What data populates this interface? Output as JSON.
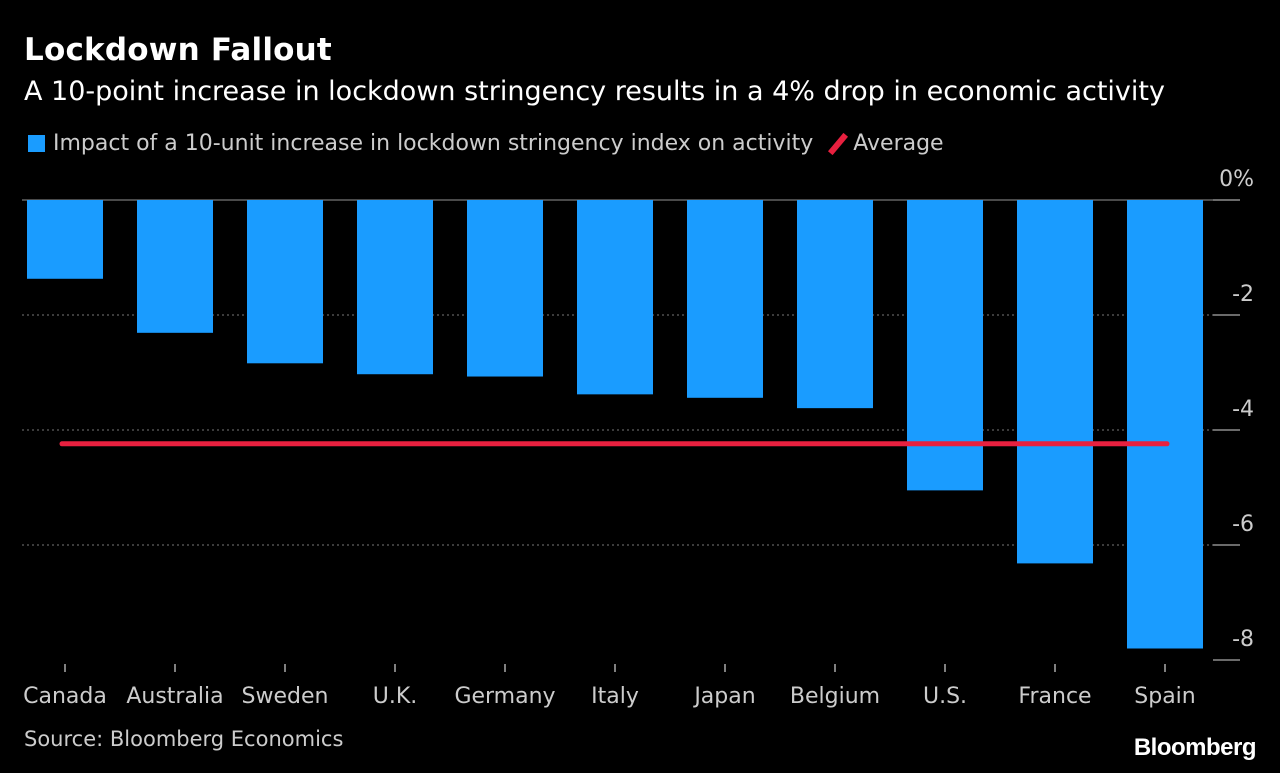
{
  "title": "Lockdown Fallout",
  "subtitle": "A 10-point increase in lockdown stringency results in a 4% drop in economic activity",
  "legend": {
    "series_label": "Impact of a 10-unit increase in lockdown stringency index on activity",
    "average_label": "Average"
  },
  "colors": {
    "bar": "#1a9cff",
    "average": "#e8203f",
    "background": "#000000",
    "grid": "#777777",
    "text": "#cccccc"
  },
  "source": "Source: Bloomberg Economics",
  "brand": "Bloomberg",
  "chart_data": {
    "type": "bar",
    "categories": [
      "Canada",
      "Australia",
      "Sweden",
      "U.K.",
      "Germany",
      "Italy",
      "Japan",
      "Belgium",
      "U.S.",
      "France",
      "Spain"
    ],
    "series": [
      {
        "name": "Impact of a 10-unit increase in lockdown stringency index on activity",
        "values": [
          -1.37,
          -2.31,
          -2.84,
          -3.03,
          -3.07,
          -3.38,
          -3.44,
          -3.62,
          -5.05,
          -6.32,
          -7.8
        ]
      }
    ],
    "average": -4.24,
    "ylim": [
      -8,
      0
    ],
    "yticks": [
      0,
      -2,
      -4,
      -6,
      -8
    ],
    "ytick_labels": [
      "0%",
      "-2",
      "-4",
      "-6",
      "-8"
    ],
    "ylabel": "",
    "xlabel": "",
    "grid": true,
    "legend_position": "top-left"
  }
}
